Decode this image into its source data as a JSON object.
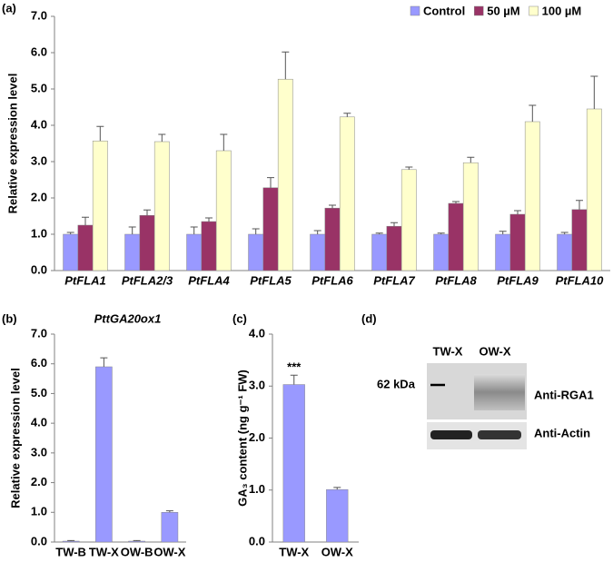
{
  "chart_data": [
    {
      "type": "bar",
      "panel_label": "(a)",
      "y_label": "Relative expression level",
      "categories": [
        "PtFLA1",
        "PtFLA2/3",
        "PtFLA4",
        "PtFLA5",
        "PtFLA6",
        "PtFLA7",
        "PtFLA8",
        "PtFLA9",
        "PtFLA10"
      ],
      "series": [
        {
          "name": "Control",
          "color": "#9999ff",
          "values": [
            1.0,
            1.0,
            1.0,
            1.0,
            1.0,
            1.0,
            1.0,
            1.0,
            1.0
          ],
          "errors": [
            0.05,
            0.2,
            0.2,
            0.15,
            0.1,
            0.03,
            0.03,
            0.08,
            0.05
          ]
        },
        {
          "name": "50 µM",
          "color": "#993366",
          "values": [
            1.25,
            1.52,
            1.35,
            2.28,
            1.72,
            1.22,
            1.85,
            1.55,
            1.68
          ],
          "errors": [
            0.22,
            0.15,
            0.1,
            0.28,
            0.08,
            0.1,
            0.05,
            0.1,
            0.25
          ]
        },
        {
          "name": "100 µM",
          "color": "#ffffcc",
          "values": [
            3.57,
            3.55,
            3.3,
            5.27,
            4.23,
            2.78,
            2.97,
            4.1,
            4.45
          ],
          "errors": [
            0.4,
            0.2,
            0.45,
            0.75,
            0.1,
            0.07,
            0.15,
            0.45,
            0.9
          ]
        }
      ],
      "ylim": [
        0,
        7
      ],
      "yticks": [
        {
          "value": 0,
          "label": "0.0"
        },
        {
          "value": 1,
          "label": "1.0"
        },
        {
          "value": 2,
          "label": "2.0"
        },
        {
          "value": 3,
          "label": "3.0"
        },
        {
          "value": 4,
          "label": "4.0"
        },
        {
          "value": 5,
          "label": "5.0"
        },
        {
          "value": 6,
          "label": "6.0"
        },
        {
          "value": 7,
          "label": "7.0"
        }
      ],
      "legend": "upper right",
      "grid": false
    },
    {
      "type": "bar",
      "panel_label": "(b)",
      "title": "PttGA20ox1",
      "y_label": "Relative expression level",
      "categories": [
        "TW-B",
        "TW-X",
        "OW-B",
        "OW-X"
      ],
      "color": "#9999ff",
      "values": [
        0.03,
        5.9,
        0.03,
        1.0
      ],
      "errors": [
        0.02,
        0.3,
        0.02,
        0.05
      ],
      "ylim": [
        0,
        7
      ],
      "yticks": [
        {
          "value": 0,
          "label": "0.0"
        },
        {
          "value": 1,
          "label": "1.0"
        },
        {
          "value": 2,
          "label": "2.0"
        },
        {
          "value": 3,
          "label": "3.0"
        },
        {
          "value": 4,
          "label": "4.0"
        },
        {
          "value": 5,
          "label": "5.0"
        },
        {
          "value": 6,
          "label": "6.0"
        },
        {
          "value": 7,
          "label": "7.0"
        }
      ],
      "grid": false
    },
    {
      "type": "bar",
      "panel_label": "(c)",
      "y_label": "GA₃ content (ng g⁻¹ FW)",
      "annotation": "***",
      "categories": [
        "TW-X",
        "OW-X"
      ],
      "color": "#9999ff",
      "values": [
        3.03,
        1.01
      ],
      "errors": [
        0.18,
        0.04
      ],
      "ylim": [
        0,
        4
      ],
      "yticks": [
        {
          "value": 0,
          "label": "0.0"
        },
        {
          "value": 1,
          "label": "1.0"
        },
        {
          "value": 2,
          "label": "2.0"
        },
        {
          "value": 3,
          "label": "3.0"
        },
        {
          "value": 4,
          "label": "4.0"
        }
      ],
      "grid": false
    },
    {
      "type": "blot",
      "panel_label": "(d)",
      "lanes": [
        "TW-X",
        "OW-X"
      ],
      "marker": "62 kDa",
      "rows": [
        "Anti-RGA1",
        "Anti-Actin"
      ]
    }
  ]
}
